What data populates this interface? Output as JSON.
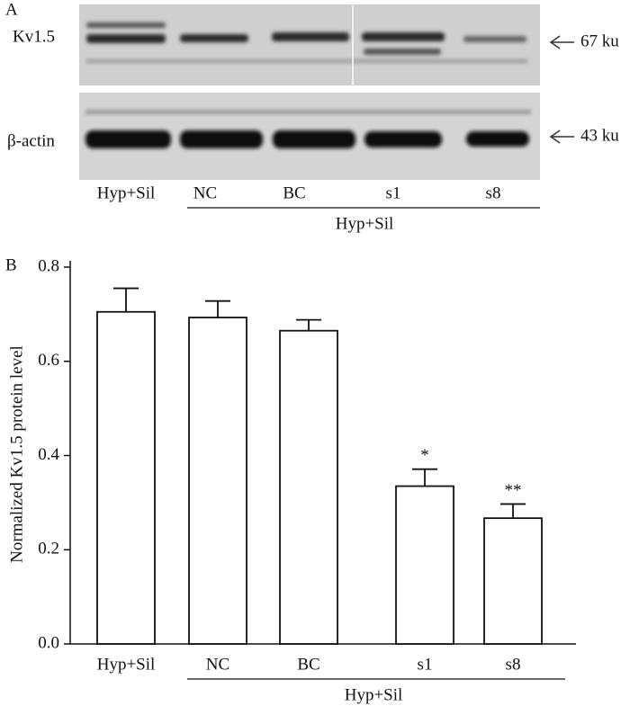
{
  "panel_a": {
    "label": "A",
    "rows": [
      {
        "label": "Kv1.5",
        "marker": "67 ku"
      },
      {
        "label": "β-actin",
        "marker": "43 ku"
      }
    ],
    "lanes": [
      "Hyp+Sil",
      "NC",
      "BC",
      "s1",
      "s8"
    ],
    "group_label": "Hyp+Sil"
  },
  "chart_data": {
    "type": "bar",
    "panel_label": "B",
    "ylabel": "Normalized Kv1.5 protein level",
    "categories": [
      "Hyp+Sil",
      "NC",
      "BC",
      "s1",
      "s8"
    ],
    "group_label": "Hyp+Sil",
    "values": [
      0.705,
      0.693,
      0.665,
      0.335,
      0.267
    ],
    "errors": [
      0.05,
      0.035,
      0.023,
      0.036,
      0.03
    ],
    "annotations": [
      null,
      null,
      null,
      "*",
      "**"
    ],
    "color": "#ffffff",
    "ylim": [
      0,
      0.8
    ],
    "yticks": [
      {
        "value": 0,
        "label": "0.0"
      },
      0.2,
      0.4,
      0.6,
      0.8
    ]
  }
}
